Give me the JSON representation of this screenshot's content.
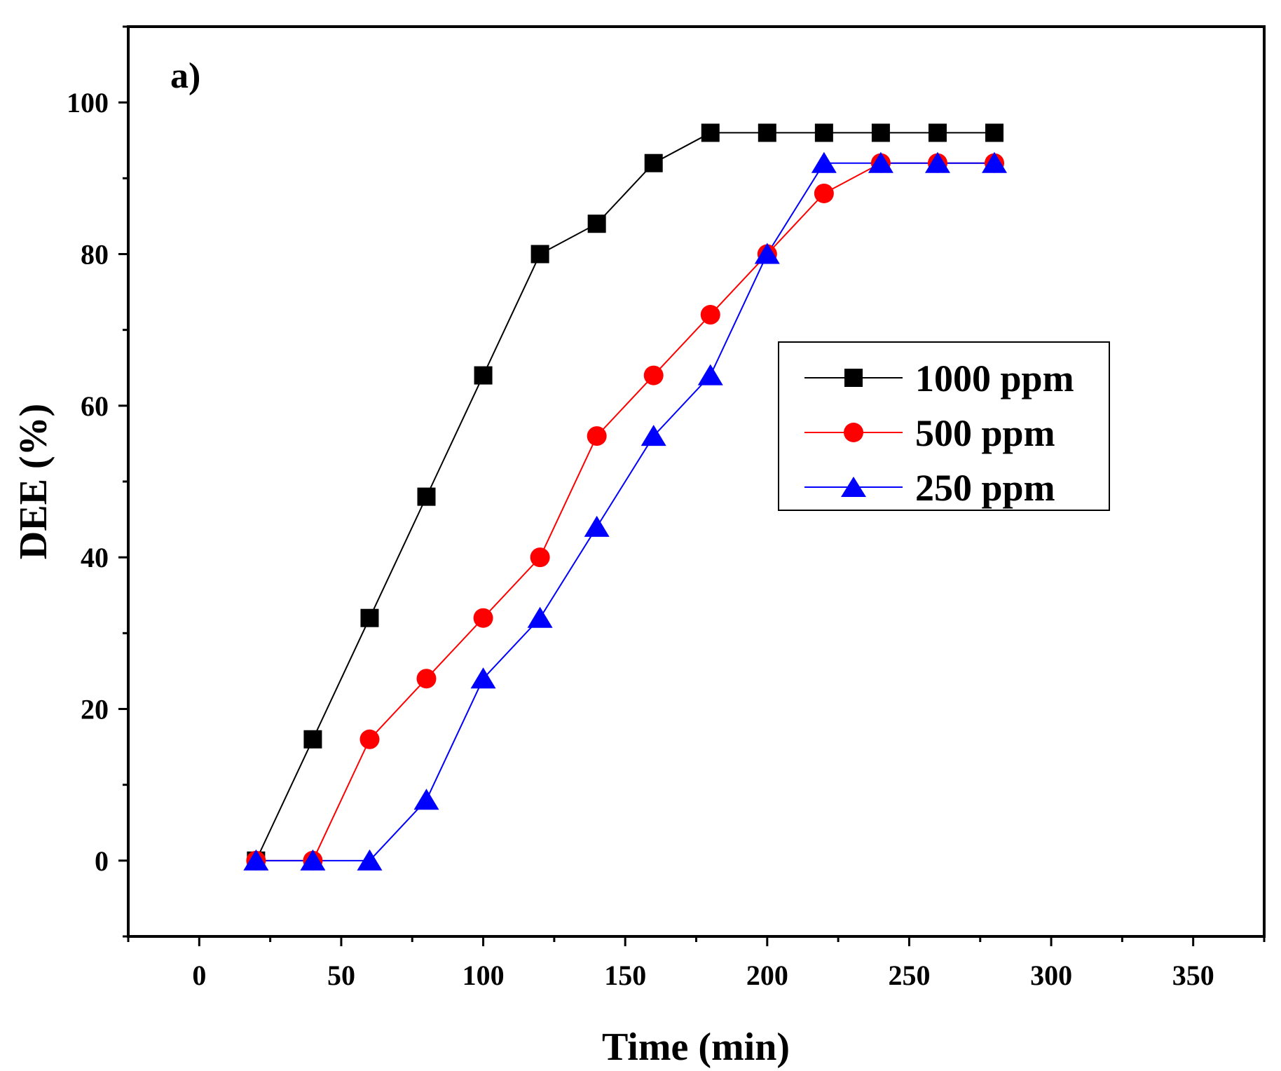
{
  "chart_data": {
    "type": "line",
    "panel_label": "a)",
    "xlabel": "Time (min)",
    "ylabel": "DEE (%)",
    "xlim": [
      -25,
      375
    ],
    "ylim": [
      -10,
      110
    ],
    "xticks": [
      0,
      50,
      100,
      150,
      200,
      250,
      300,
      350
    ],
    "yticks": [
      0,
      20,
      40,
      60,
      80,
      100
    ],
    "xtick_labels": [
      "0",
      "50",
      "100",
      "150",
      "200",
      "250",
      "300",
      "350"
    ],
    "ytick_labels": [
      "0",
      "20",
      "40",
      "60",
      "80",
      "100"
    ],
    "grid": false,
    "legend_position": "right-center",
    "x": [
      20,
      40,
      60,
      80,
      100,
      120,
      140,
      160,
      180,
      200,
      220,
      240,
      260,
      280
    ],
    "series": [
      {
        "name": "1000 ppm",
        "marker": "square",
        "color": "#000000",
        "values": [
          0,
          16,
          32,
          48,
          64,
          80,
          84,
          92,
          96,
          96,
          96,
          96,
          96,
          96
        ]
      },
      {
        "name": "500 ppm",
        "marker": "circle",
        "color": "#ff0000",
        "values": [
          0,
          0,
          16,
          24,
          32,
          40,
          56,
          64,
          72,
          80,
          88,
          92,
          92,
          92
        ]
      },
      {
        "name": "250 ppm",
        "marker": "triangle",
        "color": "#0000ff",
        "values": [
          0,
          0,
          0,
          8,
          24,
          32,
          44,
          56,
          64,
          80,
          92,
          92,
          92,
          92
        ]
      }
    ]
  }
}
